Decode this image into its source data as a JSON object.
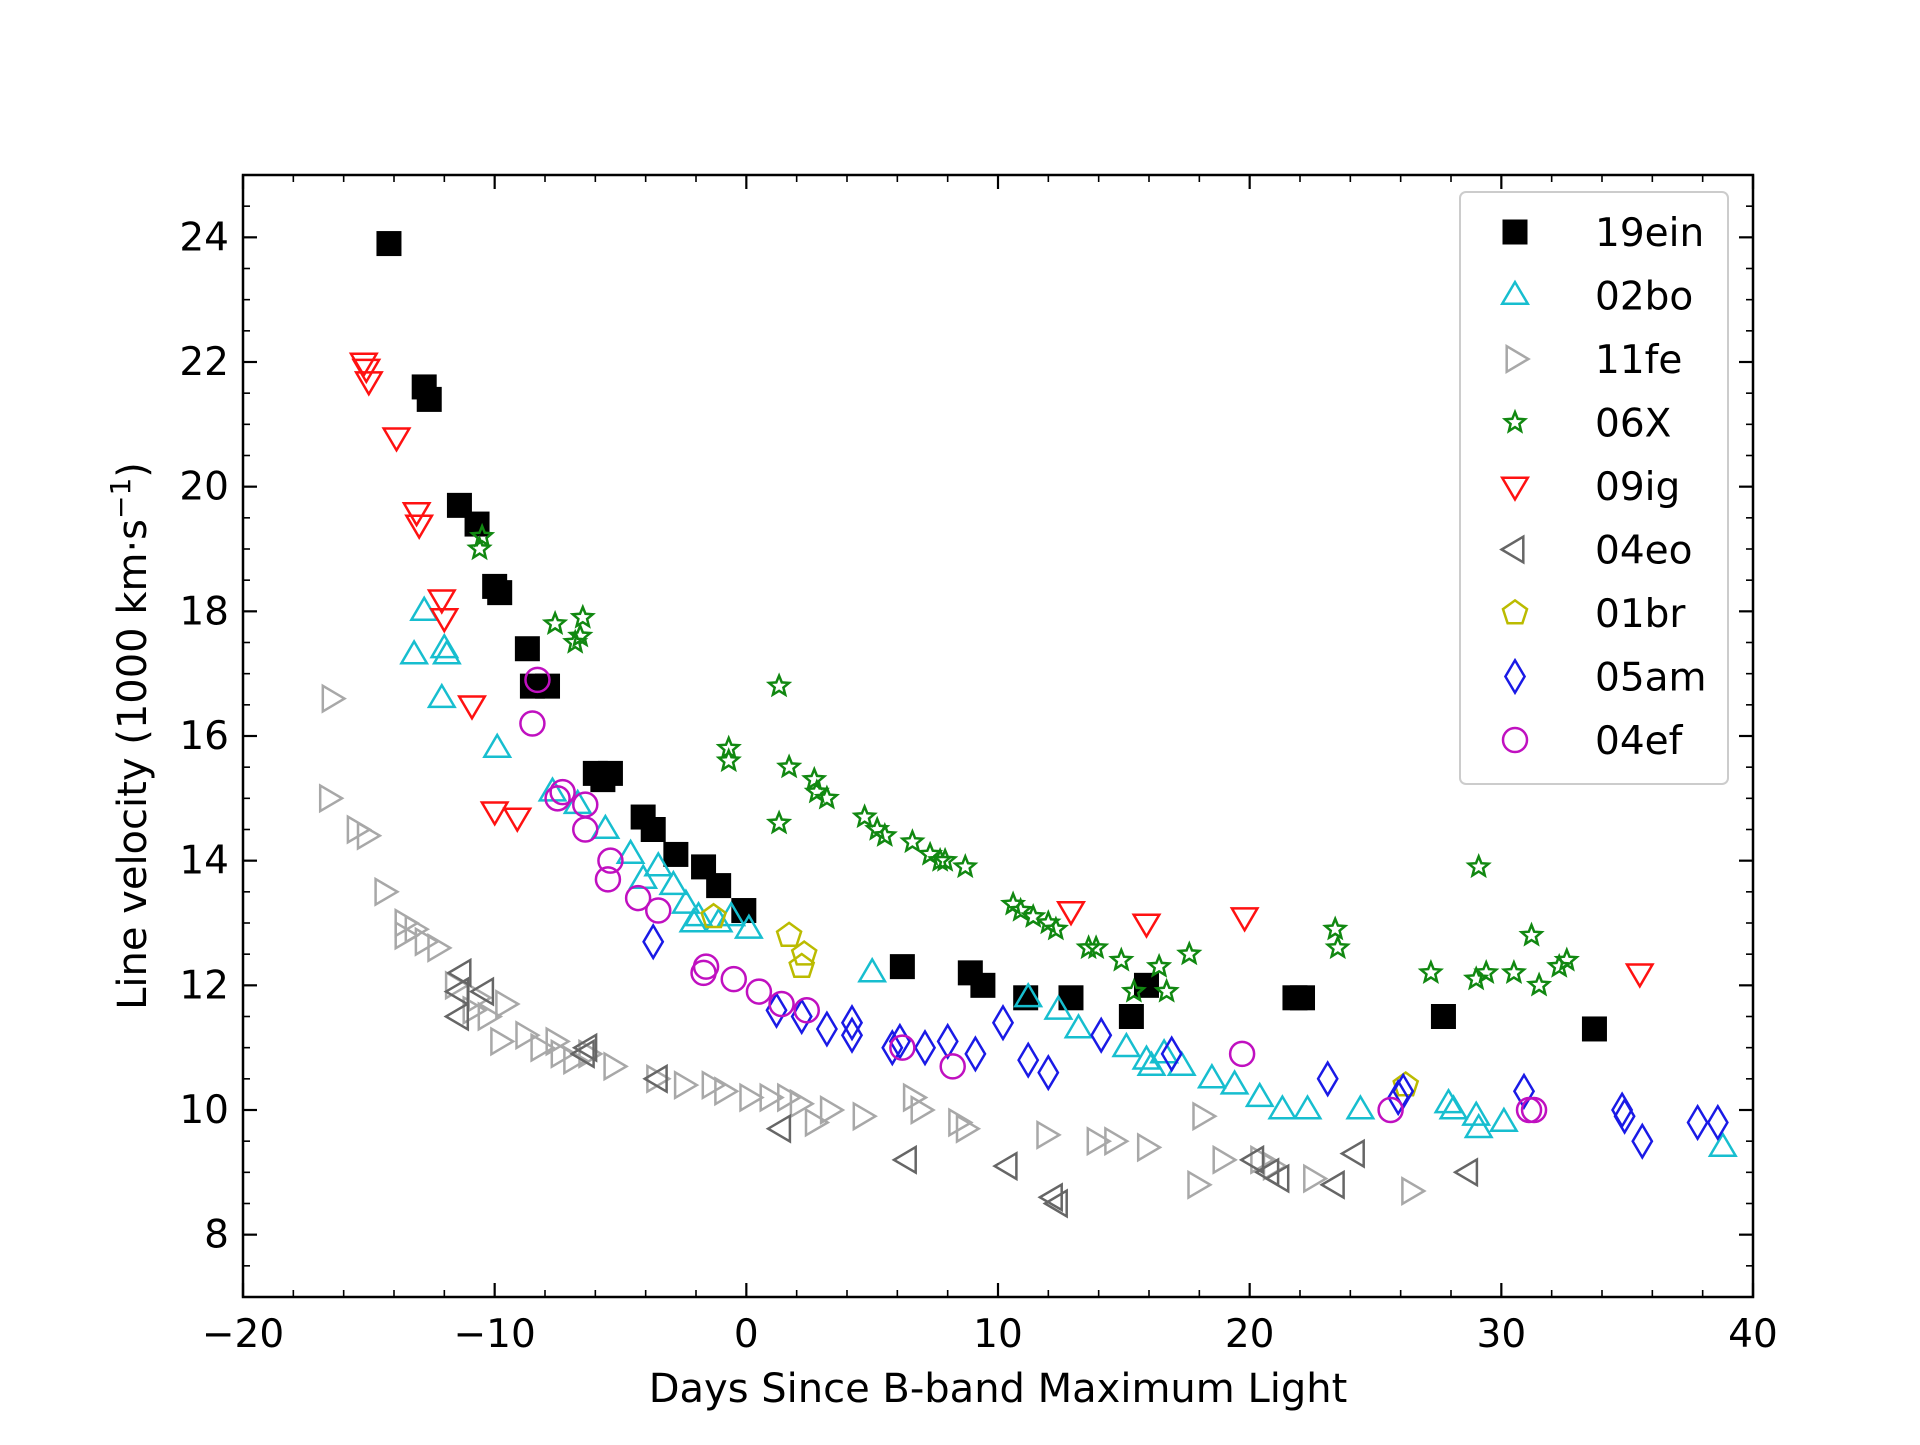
{
  "chart_data": {
    "type": "scatter",
    "title": "",
    "xlabel": "Days Since B-band Maximum Light",
    "ylabel": "Line velocity (1000 km·s",
    "ylabel_sup": "−1",
    "ylabel_close": ")",
    "xlim": [
      -20,
      40
    ],
    "ylim": [
      7,
      25
    ],
    "xticks": [
      -20,
      -10,
      0,
      10,
      20,
      30,
      40
    ],
    "xtick_labels": [
      "−20",
      "−10",
      "0",
      "10",
      "20",
      "30",
      "40"
    ],
    "yticks": [
      8,
      10,
      12,
      14,
      16,
      18,
      20,
      22,
      24
    ],
    "ytick_labels": [
      "8",
      "10",
      "12",
      "14",
      "16",
      "18",
      "20",
      "22",
      "24"
    ],
    "grid": false,
    "legend_position": "top-right",
    "series": [
      {
        "name": "19ein",
        "marker": "square",
        "filled": true,
        "color": "#000000",
        "points": [
          [
            -14.2,
            23.9
          ],
          [
            -12.8,
            21.6
          ],
          [
            -12.6,
            21.4
          ],
          [
            -11.4,
            19.7
          ],
          [
            -10.7,
            19.4
          ],
          [
            -10.0,
            18.4
          ],
          [
            -9.8,
            18.3
          ],
          [
            -8.7,
            17.4
          ],
          [
            -8.5,
            16.8
          ],
          [
            -7.9,
            16.8
          ],
          [
            -6.0,
            15.4
          ],
          [
            -5.7,
            15.3
          ],
          [
            -5.4,
            15.4
          ],
          [
            -4.1,
            14.7
          ],
          [
            -3.7,
            14.5
          ],
          [
            -2.8,
            14.1
          ],
          [
            -1.7,
            13.9
          ],
          [
            -1.1,
            13.6
          ],
          [
            -0.1,
            13.2
          ],
          [
            6.2,
            12.3
          ],
          [
            8.9,
            12.2
          ],
          [
            9.4,
            12.0
          ],
          [
            11.1,
            11.8
          ],
          [
            12.9,
            11.8
          ],
          [
            15.3,
            11.5
          ],
          [
            15.9,
            12.0
          ],
          [
            21.8,
            11.8
          ],
          [
            22.1,
            11.8
          ],
          [
            27.7,
            11.5
          ],
          [
            33.7,
            11.3
          ]
        ]
      },
      {
        "name": "02bo",
        "marker": "triangle-up",
        "filled": false,
        "color": "#17becf",
        "points": [
          [
            -12.8,
            18.0
          ],
          [
            -13.2,
            17.3
          ],
          [
            -12.0,
            17.4
          ],
          [
            -11.9,
            17.3
          ],
          [
            -12.1,
            16.6
          ],
          [
            -9.9,
            15.8
          ],
          [
            -7.7,
            15.1
          ],
          [
            -6.7,
            14.9
          ],
          [
            -5.6,
            14.5
          ],
          [
            -4.6,
            14.1
          ],
          [
            -4.1,
            13.7
          ],
          [
            -3.5,
            13.9
          ],
          [
            -2.9,
            13.6
          ],
          [
            -2.4,
            13.3
          ],
          [
            -1.9,
            13.1
          ],
          [
            -2.1,
            13.0
          ],
          [
            -1.1,
            13.0
          ],
          [
            -0.6,
            13.1
          ],
          [
            0.1,
            12.9
          ],
          [
            5.0,
            12.2
          ],
          [
            11.2,
            11.8
          ],
          [
            12.4,
            11.6
          ],
          [
            13.2,
            11.3
          ],
          [
            15.1,
            11.0
          ],
          [
            15.9,
            10.8
          ],
          [
            16.1,
            10.7
          ],
          [
            16.6,
            10.9
          ],
          [
            17.3,
            10.7
          ],
          [
            18.5,
            10.5
          ],
          [
            19.4,
            10.4
          ],
          [
            20.4,
            10.2
          ],
          [
            21.3,
            10.0
          ],
          [
            22.3,
            10.0
          ],
          [
            24.4,
            10.0
          ],
          [
            27.9,
            10.1
          ],
          [
            28.1,
            10.0
          ],
          [
            29.0,
            9.9
          ],
          [
            29.1,
            9.7
          ],
          [
            30.1,
            9.8
          ],
          [
            38.8,
            9.4
          ]
        ]
      },
      {
        "name": "11fe",
        "marker": "triangle-right",
        "filled": false,
        "color": "#a8a8a8",
        "points": [
          [
            -16.5,
            16.6
          ],
          [
            -16.6,
            15.0
          ],
          [
            -15.5,
            14.5
          ],
          [
            -15.1,
            14.4
          ],
          [
            -14.4,
            13.5
          ],
          [
            -13.6,
            13.0
          ],
          [
            -13.6,
            12.8
          ],
          [
            -13.2,
            12.9
          ],
          [
            -12.8,
            12.7
          ],
          [
            -12.3,
            12.6
          ],
          [
            -11.6,
            12.0
          ],
          [
            -10.7,
            11.8
          ],
          [
            -10.9,
            11.6
          ],
          [
            -10.3,
            11.5
          ],
          [
            -9.6,
            11.7
          ],
          [
            -9.8,
            11.1
          ],
          [
            -8.8,
            11.2
          ],
          [
            -8.2,
            11.0
          ],
          [
            -7.6,
            11.1
          ],
          [
            -7.4,
            10.9
          ],
          [
            -6.9,
            10.8
          ],
          [
            -6.3,
            10.9
          ],
          [
            -5.3,
            10.7
          ],
          [
            -3.6,
            10.5
          ],
          [
            -2.5,
            10.4
          ],
          [
            -1.4,
            10.4
          ],
          [
            -0.9,
            10.3
          ],
          [
            0.1,
            10.2
          ],
          [
            0.9,
            10.2
          ],
          [
            1.6,
            10.2
          ],
          [
            2.1,
            10.1
          ],
          [
            3.3,
            10.0
          ],
          [
            4.6,
            9.9
          ],
          [
            2.7,
            9.8
          ],
          [
            6.6,
            10.2
          ],
          [
            6.9,
            10.0
          ],
          [
            8.4,
            9.8
          ],
          [
            8.7,
            9.7
          ],
          [
            11.9,
            9.6
          ],
          [
            13.9,
            9.5
          ],
          [
            14.6,
            9.5
          ],
          [
            15.9,
            9.4
          ],
          [
            18.1,
            9.9
          ],
          [
            17.9,
            8.8
          ],
          [
            18.9,
            9.2
          ],
          [
            20.4,
            9.2
          ],
          [
            20.9,
            9.1
          ],
          [
            22.5,
            8.9
          ],
          [
            26.4,
            8.7
          ]
        ]
      },
      {
        "name": "06X",
        "marker": "star",
        "filled": false,
        "color": "#118811",
        "points": [
          [
            -10.5,
            19.2
          ],
          [
            -10.6,
            19.0
          ],
          [
            -7.6,
            17.8
          ],
          [
            -6.5,
            17.9
          ],
          [
            -6.6,
            17.6
          ],
          [
            -6.8,
            17.5
          ],
          [
            1.3,
            16.8
          ],
          [
            -0.7,
            15.8
          ],
          [
            -0.7,
            15.6
          ],
          [
            1.7,
            15.5
          ],
          [
            2.7,
            15.3
          ],
          [
            2.8,
            15.1
          ],
          [
            3.2,
            15.0
          ],
          [
            1.3,
            14.6
          ],
          [
            4.7,
            14.7
          ],
          [
            5.2,
            14.5
          ],
          [
            5.5,
            14.4
          ],
          [
            6.6,
            14.3
          ],
          [
            7.3,
            14.1
          ],
          [
            7.7,
            14.0
          ],
          [
            7.9,
            14.0
          ],
          [
            8.7,
            13.9
          ],
          [
            10.6,
            13.3
          ],
          [
            10.9,
            13.2
          ],
          [
            11.4,
            13.1
          ],
          [
            12.0,
            13.0
          ],
          [
            12.3,
            12.9
          ],
          [
            13.6,
            12.6
          ],
          [
            13.9,
            12.6
          ],
          [
            14.9,
            12.4
          ],
          [
            16.4,
            12.3
          ],
          [
            17.6,
            12.5
          ],
          [
            15.4,
            11.9
          ],
          [
            16.7,
            11.9
          ],
          [
            23.4,
            12.9
          ],
          [
            23.5,
            12.6
          ],
          [
            27.2,
            12.2
          ],
          [
            29.1,
            13.9
          ],
          [
            29.0,
            12.1
          ],
          [
            29.4,
            12.2
          ],
          [
            30.5,
            12.2
          ],
          [
            31.2,
            12.8
          ],
          [
            31.5,
            12.0
          ],
          [
            32.3,
            12.3
          ],
          [
            32.6,
            12.4
          ]
        ]
      },
      {
        "name": "09ig",
        "marker": "triangle-down",
        "filled": false,
        "color": "#ff1111",
        "points": [
          [
            -15.2,
            22.0
          ],
          [
            -15.1,
            21.9
          ],
          [
            -15.0,
            21.7
          ],
          [
            -13.9,
            20.8
          ],
          [
            -13.1,
            19.6
          ],
          [
            -13.0,
            19.4
          ],
          [
            -12.1,
            18.2
          ],
          [
            -12.0,
            17.9
          ],
          [
            -10.9,
            16.5
          ],
          [
            -10.0,
            14.8
          ],
          [
            -9.1,
            14.7
          ],
          [
            12.9,
            13.2
          ],
          [
            15.9,
            13.0
          ],
          [
            19.8,
            13.1
          ],
          [
            35.5,
            12.2
          ]
        ]
      },
      {
        "name": "04eo",
        "marker": "triangle-left",
        "filled": false,
        "color": "#666666",
        "points": [
          [
            -11.3,
            12.2
          ],
          [
            -11.4,
            11.9
          ],
          [
            -10.4,
            11.9
          ],
          [
            -11.4,
            11.5
          ],
          [
            -6.3,
            11.0
          ],
          [
            -6.4,
            10.9
          ],
          [
            -3.5,
            10.5
          ],
          [
            1.4,
            9.7
          ],
          [
            6.4,
            9.2
          ],
          [
            10.4,
            9.1
          ],
          [
            12.2,
            8.6
          ],
          [
            12.4,
            8.5
          ],
          [
            20.2,
            9.2
          ],
          [
            20.8,
            9.0
          ],
          [
            21.2,
            8.9
          ],
          [
            23.4,
            8.8
          ],
          [
            24.2,
            9.3
          ],
          [
            28.7,
            9.0
          ]
        ]
      },
      {
        "name": "01br",
        "marker": "pentagon",
        "filled": false,
        "color": "#bbbb00",
        "points": [
          [
            -1.3,
            13.1
          ],
          [
            1.7,
            12.8
          ],
          [
            2.3,
            12.5
          ],
          [
            2.2,
            12.3
          ],
          [
            26.2,
            10.4
          ]
        ]
      },
      {
        "name": "05am",
        "marker": "diamond",
        "filled": false,
        "color": "#1a1ae6",
        "points": [
          [
            -3.7,
            12.7
          ],
          [
            1.2,
            11.6
          ],
          [
            2.2,
            11.5
          ],
          [
            3.2,
            11.3
          ],
          [
            4.2,
            11.4
          ],
          [
            4.2,
            11.2
          ],
          [
            6.1,
            11.1
          ],
          [
            5.8,
            11.0
          ],
          [
            7.1,
            11.0
          ],
          [
            8.0,
            11.1
          ],
          [
            9.1,
            10.9
          ],
          [
            10.2,
            11.4
          ],
          [
            11.2,
            10.8
          ],
          [
            12.0,
            10.6
          ],
          [
            14.1,
            11.2
          ],
          [
            16.9,
            10.9
          ],
          [
            23.1,
            10.5
          ],
          [
            26.1,
            10.3
          ],
          [
            25.9,
            10.2
          ],
          [
            30.9,
            10.3
          ],
          [
            34.8,
            10.0
          ],
          [
            34.9,
            9.9
          ],
          [
            35.6,
            9.5
          ],
          [
            37.8,
            9.8
          ],
          [
            38.6,
            9.8
          ]
        ]
      },
      {
        "name": "04ef",
        "marker": "circle",
        "filled": false,
        "color": "#c010c0",
        "points": [
          [
            -8.3,
            16.9
          ],
          [
            -8.5,
            16.2
          ],
          [
            -7.3,
            15.1
          ],
          [
            -7.5,
            15.0
          ],
          [
            -6.4,
            14.9
          ],
          [
            -6.4,
            14.5
          ],
          [
            -5.4,
            14.0
          ],
          [
            -5.5,
            13.7
          ],
          [
            -4.3,
            13.4
          ],
          [
            -3.5,
            13.2
          ],
          [
            -1.6,
            12.3
          ],
          [
            -1.7,
            12.2
          ],
          [
            -0.5,
            12.1
          ],
          [
            0.5,
            11.9
          ],
          [
            1.4,
            11.7
          ],
          [
            2.4,
            11.6
          ],
          [
            6.2,
            11.0
          ],
          [
            8.2,
            10.7
          ],
          [
            19.7,
            10.9
          ],
          [
            25.6,
            10.0
          ],
          [
            31.1,
            10.0
          ],
          [
            31.3,
            10.0
          ]
        ]
      }
    ]
  }
}
